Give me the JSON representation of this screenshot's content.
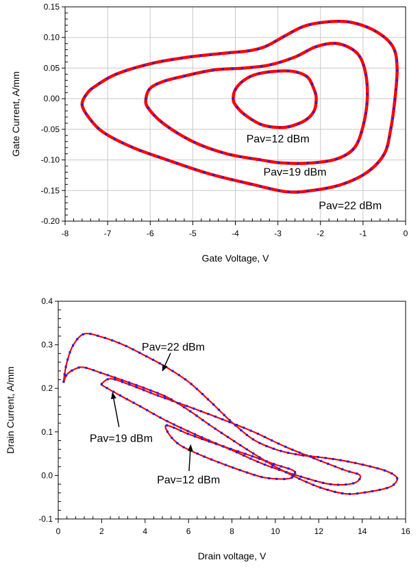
{
  "chart_data": [
    {
      "type": "line",
      "xlabel": "Gate Voltage, V",
      "ylabel": "Gate Current, A/mm",
      "xlim": [
        -8,
        0
      ],
      "ylim": [
        -0.2,
        0.15
      ],
      "xticks": [
        -8,
        -7,
        -6,
        -5,
        -4,
        -3,
        -2,
        -1,
        0
      ],
      "xtick_labels": [
        "-8",
        "-7",
        "-6",
        "-5",
        "-4",
        "-3",
        "-2",
        "-1",
        "0"
      ],
      "yticks": [
        -0.2,
        -0.15,
        -0.1,
        -0.05,
        0.0,
        0.05,
        0.1,
        0.15
      ],
      "ytick_labels": [
        "-0.20",
        "-0.15",
        "-0.10",
        "-0.05",
        "0.00",
        "0.05",
        "0.10",
        "0.15"
      ],
      "grid": true,
      "series_style": {
        "model_line": "#ff0000",
        "measured_markers": "#2020e0"
      },
      "loops": [
        {
          "label": "Pav=12 dBm",
          "points": [
            [
              -4.05,
              0.0
            ],
            [
              -4.0,
              0.015
            ],
            [
              -3.8,
              0.03
            ],
            [
              -3.5,
              0.04
            ],
            [
              -3.0,
              0.045
            ],
            [
              -2.6,
              0.044
            ],
            [
              -2.3,
              0.035
            ],
            [
              -2.15,
              0.015
            ],
            [
              -2.1,
              0.0
            ],
            [
              -2.15,
              -0.02
            ],
            [
              -2.35,
              -0.035
            ],
            [
              -2.7,
              -0.045
            ],
            [
              -3.0,
              -0.047
            ],
            [
              -3.4,
              -0.042
            ],
            [
              -3.8,
              -0.025
            ],
            [
              -4.0,
              -0.01
            ],
            [
              -4.05,
              0.0
            ]
          ]
        },
        {
          "label": "Pav=19 dBm",
          "points": [
            [
              -6.1,
              0.0
            ],
            [
              -6.0,
              0.017
            ],
            [
              -5.7,
              0.028
            ],
            [
              -5.2,
              0.037
            ],
            [
              -4.5,
              0.047
            ],
            [
              -3.8,
              0.05
            ],
            [
              -3.2,
              0.055
            ],
            [
              -2.6,
              0.068
            ],
            [
              -2.1,
              0.085
            ],
            [
              -1.6,
              0.09
            ],
            [
              -1.15,
              0.075
            ],
            [
              -0.95,
              0.045
            ],
            [
              -0.9,
              0.0
            ],
            [
              -1.0,
              -0.045
            ],
            [
              -1.2,
              -0.08
            ],
            [
              -1.6,
              -0.098
            ],
            [
              -2.2,
              -0.105
            ],
            [
              -2.9,
              -0.105
            ],
            [
              -3.4,
              -0.1
            ],
            [
              -4.2,
              -0.09
            ],
            [
              -5.0,
              -0.07
            ],
            [
              -5.7,
              -0.04
            ],
            [
              -6.05,
              -0.015
            ],
            [
              -6.1,
              0.0
            ]
          ]
        },
        {
          "label": "Pav=22 dBm",
          "points": [
            [
              -7.6,
              -0.01
            ],
            [
              -7.5,
              0.007
            ],
            [
              -7.3,
              0.02
            ],
            [
              -6.8,
              0.04
            ],
            [
              -6.0,
              0.057
            ],
            [
              -5.2,
              0.067
            ],
            [
              -4.3,
              0.074
            ],
            [
              -3.7,
              0.078
            ],
            [
              -3.3,
              0.085
            ],
            [
              -2.9,
              0.1
            ],
            [
              -2.4,
              0.118
            ],
            [
              -1.9,
              0.125
            ],
            [
              -1.3,
              0.125
            ],
            [
              -0.7,
              0.11
            ],
            [
              -0.3,
              0.085
            ],
            [
              -0.2,
              0.05
            ],
            [
              -0.25,
              0.0
            ],
            [
              -0.35,
              -0.05
            ],
            [
              -0.5,
              -0.09
            ],
            [
              -0.9,
              -0.12
            ],
            [
              -1.5,
              -0.14
            ],
            [
              -2.2,
              -0.15
            ],
            [
              -2.8,
              -0.152
            ],
            [
              -3.6,
              -0.14
            ],
            [
              -4.6,
              -0.123
            ],
            [
              -5.6,
              -0.1
            ],
            [
              -6.4,
              -0.08
            ],
            [
              -7.1,
              -0.055
            ],
            [
              -7.45,
              -0.03
            ],
            [
              -7.6,
              -0.01
            ]
          ]
        }
      ],
      "annotations": [
        {
          "text": "Pav=12 dBm",
          "x": -3.0,
          "y": -0.066
        },
        {
          "text": "Pav=19 dBm",
          "x": -2.6,
          "y": -0.12
        },
        {
          "text": "Pav=22 dBm",
          "x": -1.3,
          "y": -0.175
        }
      ]
    },
    {
      "type": "line",
      "xlabel": "Drain voltage, V",
      "ylabel": "Drain Current, A/mm",
      "xlim": [
        0,
        16
      ],
      "ylim": [
        -0.1,
        0.4
      ],
      "xticks": [
        0,
        2,
        4,
        6,
        8,
        10,
        12,
        14,
        16
      ],
      "xtick_labels": [
        "0",
        "2",
        "4",
        "6",
        "8",
        "10",
        "12",
        "14",
        "16"
      ],
      "yticks": [
        -0.1,
        0.0,
        0.1,
        0.2,
        0.3,
        0.4
      ],
      "ytick_labels": [
        "-0.1",
        "0.0",
        "0.1",
        "0.2",
        "0.3",
        "0.4"
      ],
      "grid": false,
      "series_style": {
        "model_line": "#ff0000",
        "measured_markers": "#2020e0"
      },
      "loops": [
        {
          "label": "Pav=12 dBm",
          "points": [
            [
              5.0,
              0.115
            ],
            [
              6.0,
              0.095
            ],
            [
              7.0,
              0.077
            ],
            [
              8.0,
              0.06
            ],
            [
              9.0,
              0.043
            ],
            [
              10.0,
              0.025
            ],
            [
              10.8,
              0.012
            ],
            [
              10.9,
              0.0
            ],
            [
              10.5,
              -0.008
            ],
            [
              9.5,
              -0.005
            ],
            [
              8.5,
              0.01
            ],
            [
              7.5,
              0.028
            ],
            [
              6.5,
              0.048
            ],
            [
              5.6,
              0.07
            ],
            [
              5.1,
              0.095
            ],
            [
              5.0,
              0.115
            ]
          ]
        },
        {
          "label": "Pav=19 dBm",
          "points": [
            [
              2.0,
              0.21
            ],
            [
              2.4,
              0.222
            ],
            [
              3.2,
              0.21
            ],
            [
              4.5,
              0.185
            ],
            [
              6.0,
              0.158
            ],
            [
              7.5,
              0.13
            ],
            [
              9.0,
              0.1
            ],
            [
              10.5,
              0.065
            ],
            [
              12.0,
              0.035
            ],
            [
              13.2,
              0.012
            ],
            [
              13.9,
              0.0
            ],
            [
              13.6,
              -0.018
            ],
            [
              12.5,
              -0.02
            ],
            [
              11.0,
              0.0
            ],
            [
              9.5,
              0.025
            ],
            [
              8.0,
              0.058
            ],
            [
              6.5,
              0.09
            ],
            [
              5.0,
              0.125
            ],
            [
              3.8,
              0.158
            ],
            [
              2.8,
              0.185
            ],
            [
              2.1,
              0.205
            ],
            [
              2.0,
              0.21
            ]
          ]
        },
        {
          "label": "Pav=22 dBm",
          "points": [
            [
              0.25,
              0.215
            ],
            [
              0.4,
              0.26
            ],
            [
              0.7,
              0.3
            ],
            [
              1.2,
              0.325
            ],
            [
              2.0,
              0.318
            ],
            [
              3.0,
              0.3
            ],
            [
              4.0,
              0.275
            ],
            [
              5.0,
              0.248
            ],
            [
              6.0,
              0.215
            ],
            [
              7.0,
              0.17
            ],
            [
              8.0,
              0.122
            ],
            [
              9.0,
              0.082
            ],
            [
              10.0,
              0.06
            ],
            [
              11.0,
              0.048
            ],
            [
              12.0,
              0.042
            ],
            [
              13.0,
              0.035
            ],
            [
              14.0,
              0.025
            ],
            [
              15.0,
              0.012
            ],
            [
              15.5,
              0.0
            ],
            [
              15.6,
              -0.012
            ],
            [
              15.2,
              -0.028
            ],
            [
              14.0,
              -0.04
            ],
            [
              13.2,
              -0.042
            ],
            [
              12.2,
              -0.03
            ],
            [
              11.2,
              -0.01
            ],
            [
              10.0,
              0.02
            ],
            [
              9.0,
              0.05
            ],
            [
              8.0,
              0.082
            ],
            [
              7.0,
              0.115
            ],
            [
              6.0,
              0.15
            ],
            [
              5.0,
              0.18
            ],
            [
              4.0,
              0.2
            ],
            [
              3.0,
              0.218
            ],
            [
              2.0,
              0.235
            ],
            [
              1.2,
              0.248
            ],
            [
              0.8,
              0.245
            ],
            [
              0.4,
              0.232
            ],
            [
              0.25,
              0.215
            ]
          ]
        }
      ],
      "annotations": [
        {
          "text": "Pav=22 dBm",
          "x": 5.3,
          "y": 0.295,
          "arrow_to": [
            4.8,
            0.24
          ]
        },
        {
          "text": "Pav=19 dBm",
          "x": 2.9,
          "y": 0.085,
          "arrow_to": [
            2.5,
            0.19
          ]
        },
        {
          "text": "Pav=12 dBm",
          "x": 6.0,
          "y": -0.01,
          "arrow_to": [
            6.1,
            0.07
          ]
        }
      ]
    }
  ]
}
